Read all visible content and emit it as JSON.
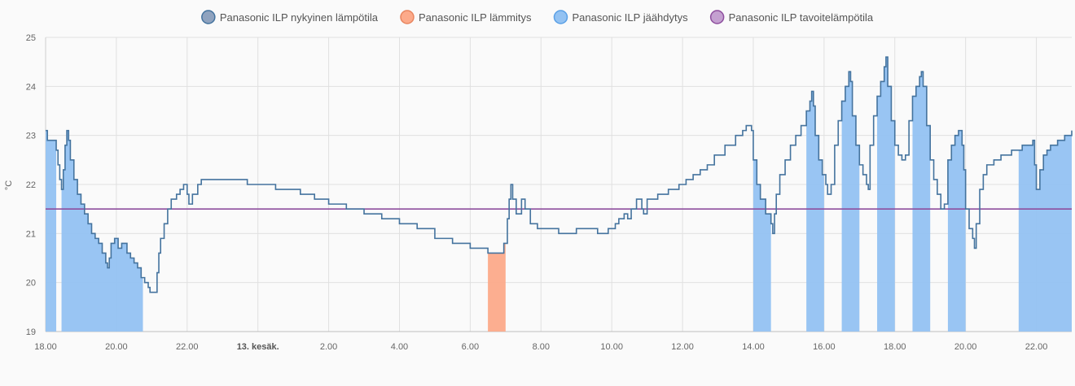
{
  "colors": {
    "current": "#44739e",
    "current_legend_fill": "#8fa3bf",
    "heating": "#fcaa8a",
    "heating_border": "#e8855f",
    "cooling": "#93c2f2",
    "cooling_border": "#5aa0e6",
    "target": "#8e4e9e",
    "target_legend_fill": "#c4a0d0",
    "grid": "#e0e0e0",
    "background": "#fafafa"
  },
  "chart_data": {
    "type": "line",
    "title": "",
    "xlabel": "",
    "ylabel": "°C",
    "x_unit": "hours since 18.00 on day 1",
    "xlim": [
      0,
      29
    ],
    "ylim": [
      19,
      25
    ],
    "y_ticks": [
      "19",
      "20",
      "21",
      "22",
      "23",
      "24",
      "25"
    ],
    "x_ticks": [
      {
        "x": 0,
        "label": "18.00",
        "bold": false
      },
      {
        "x": 2,
        "label": "20.00",
        "bold": false
      },
      {
        "x": 4,
        "label": "22.00",
        "bold": false
      },
      {
        "x": 6,
        "label": "13. kesäk.",
        "bold": true
      },
      {
        "x": 8,
        "label": "2.00",
        "bold": false
      },
      {
        "x": 10,
        "label": "4.00",
        "bold": false
      },
      {
        "x": 12,
        "label": "6.00",
        "bold": false
      },
      {
        "x": 14,
        "label": "8.00",
        "bold": false
      },
      {
        "x": 16,
        "label": "10.00",
        "bold": false
      },
      {
        "x": 18,
        "label": "12.00",
        "bold": false
      },
      {
        "x": 20,
        "label": "14.00",
        "bold": false
      },
      {
        "x": 22,
        "label": "16.00",
        "bold": false
      },
      {
        "x": 24,
        "label": "18.00",
        "bold": false
      },
      {
        "x": 26,
        "label": "20.00",
        "bold": false
      },
      {
        "x": 28,
        "label": "22.00",
        "bold": false
      }
    ],
    "legend": [
      {
        "key": "current",
        "label": "Panasonic ILP nykyinen lämpötila"
      },
      {
        "key": "heating",
        "label": "Panasonic ILP lämmitys"
      },
      {
        "key": "cooling",
        "label": "Panasonic ILP jäähdytys"
      },
      {
        "key": "target",
        "label": "Panasonic ILP tavoitelämpötila"
      }
    ],
    "series": [
      {
        "name": "Panasonic ILP nykyinen lämpötila",
        "key": "current",
        "kind": "step-line",
        "points": [
          [
            0.0,
            23.1
          ],
          [
            0.05,
            22.9
          ],
          [
            0.2,
            22.9
          ],
          [
            0.3,
            22.7
          ],
          [
            0.35,
            22.4
          ],
          [
            0.4,
            22.1
          ],
          [
            0.45,
            21.9
          ],
          [
            0.5,
            22.3
          ],
          [
            0.55,
            22.8
          ],
          [
            0.6,
            23.1
          ],
          [
            0.65,
            22.9
          ],
          [
            0.7,
            22.5
          ],
          [
            0.8,
            22.1
          ],
          [
            0.9,
            21.8
          ],
          [
            1.0,
            21.6
          ],
          [
            1.1,
            21.4
          ],
          [
            1.2,
            21.2
          ],
          [
            1.3,
            21.0
          ],
          [
            1.4,
            20.9
          ],
          [
            1.5,
            20.8
          ],
          [
            1.6,
            20.6
          ],
          [
            1.7,
            20.4
          ],
          [
            1.75,
            20.3
          ],
          [
            1.8,
            20.5
          ],
          [
            1.85,
            20.8
          ],
          [
            1.95,
            20.9
          ],
          [
            2.05,
            20.7
          ],
          [
            2.15,
            20.8
          ],
          [
            2.3,
            20.6
          ],
          [
            2.4,
            20.5
          ],
          [
            2.5,
            20.4
          ],
          [
            2.6,
            20.3
          ],
          [
            2.7,
            20.1
          ],
          [
            2.8,
            20.0
          ],
          [
            2.9,
            19.9
          ],
          [
            2.95,
            19.8
          ],
          [
            3.1,
            19.8
          ],
          [
            3.15,
            20.2
          ],
          [
            3.2,
            20.6
          ],
          [
            3.25,
            20.9
          ],
          [
            3.35,
            21.2
          ],
          [
            3.45,
            21.5
          ],
          [
            3.55,
            21.7
          ],
          [
            3.7,
            21.8
          ],
          [
            3.8,
            21.9
          ],
          [
            3.9,
            22.0
          ],
          [
            4.0,
            21.8
          ],
          [
            4.05,
            21.6
          ],
          [
            4.15,
            21.8
          ],
          [
            4.3,
            22.0
          ],
          [
            4.4,
            22.1
          ],
          [
            5.7,
            22.0
          ],
          [
            6.5,
            21.9
          ],
          [
            7.2,
            21.8
          ],
          [
            7.6,
            21.7
          ],
          [
            8.0,
            21.6
          ],
          [
            8.5,
            21.5
          ],
          [
            9.0,
            21.4
          ],
          [
            9.5,
            21.3
          ],
          [
            10.0,
            21.2
          ],
          [
            10.5,
            21.1
          ],
          [
            11.0,
            20.9
          ],
          [
            11.5,
            20.8
          ],
          [
            12.0,
            20.7
          ],
          [
            12.5,
            20.6
          ],
          [
            12.9,
            20.6
          ],
          [
            12.95,
            20.8
          ],
          [
            13.05,
            21.3
          ],
          [
            13.1,
            21.7
          ],
          [
            13.15,
            22.0
          ],
          [
            13.2,
            21.7
          ],
          [
            13.3,
            21.4
          ],
          [
            13.45,
            21.7
          ],
          [
            13.55,
            21.5
          ],
          [
            13.7,
            21.2
          ],
          [
            13.9,
            21.1
          ],
          [
            14.5,
            21.0
          ],
          [
            15.0,
            21.1
          ],
          [
            15.6,
            21.0
          ],
          [
            15.9,
            21.1
          ],
          [
            16.1,
            21.2
          ],
          [
            16.2,
            21.3
          ],
          [
            16.35,
            21.4
          ],
          [
            16.45,
            21.3
          ],
          [
            16.55,
            21.5
          ],
          [
            16.7,
            21.7
          ],
          [
            16.85,
            21.5
          ],
          [
            16.9,
            21.4
          ],
          [
            17.0,
            21.7
          ],
          [
            17.3,
            21.8
          ],
          [
            17.6,
            21.9
          ],
          [
            17.9,
            22.0
          ],
          [
            18.1,
            22.1
          ],
          [
            18.3,
            22.2
          ],
          [
            18.5,
            22.3
          ],
          [
            18.7,
            22.4
          ],
          [
            18.9,
            22.6
          ],
          [
            19.2,
            22.8
          ],
          [
            19.5,
            23.0
          ],
          [
            19.7,
            23.1
          ],
          [
            19.8,
            23.2
          ],
          [
            19.95,
            23.1
          ],
          [
            20.0,
            22.5
          ],
          [
            20.1,
            22.0
          ],
          [
            20.2,
            21.7
          ],
          [
            20.35,
            21.4
          ],
          [
            20.5,
            21.2
          ],
          [
            20.55,
            21.0
          ],
          [
            20.6,
            21.4
          ],
          [
            20.65,
            21.8
          ],
          [
            20.75,
            22.2
          ],
          [
            20.9,
            22.5
          ],
          [
            21.05,
            22.8
          ],
          [
            21.2,
            23.0
          ],
          [
            21.35,
            23.2
          ],
          [
            21.5,
            23.5
          ],
          [
            21.6,
            23.7
          ],
          [
            21.65,
            23.9
          ],
          [
            21.7,
            23.6
          ],
          [
            21.75,
            23.0
          ],
          [
            21.85,
            22.5
          ],
          [
            21.95,
            22.2
          ],
          [
            22.05,
            22.0
          ],
          [
            22.1,
            21.8
          ],
          [
            22.2,
            22.0
          ],
          [
            22.3,
            22.8
          ],
          [
            22.4,
            23.3
          ],
          [
            22.5,
            23.7
          ],
          [
            22.6,
            24.0
          ],
          [
            22.7,
            24.3
          ],
          [
            22.75,
            24.1
          ],
          [
            22.8,
            23.4
          ],
          [
            22.9,
            22.8
          ],
          [
            23.0,
            22.4
          ],
          [
            23.1,
            22.2
          ],
          [
            23.2,
            22.0
          ],
          [
            23.25,
            21.9
          ],
          [
            23.3,
            22.8
          ],
          [
            23.4,
            23.4
          ],
          [
            23.5,
            23.8
          ],
          [
            23.6,
            24.1
          ],
          [
            23.7,
            24.4
          ],
          [
            23.75,
            24.6
          ],
          [
            23.8,
            24.0
          ],
          [
            23.9,
            23.3
          ],
          [
            24.0,
            22.8
          ],
          [
            24.1,
            22.6
          ],
          [
            24.2,
            22.5
          ],
          [
            24.3,
            22.6
          ],
          [
            24.4,
            23.3
          ],
          [
            24.5,
            23.8
          ],
          [
            24.6,
            24.0
          ],
          [
            24.7,
            24.2
          ],
          [
            24.75,
            24.3
          ],
          [
            24.8,
            24.0
          ],
          [
            24.9,
            23.2
          ],
          [
            25.0,
            22.5
          ],
          [
            25.1,
            22.1
          ],
          [
            25.2,
            21.8
          ],
          [
            25.3,
            21.5
          ],
          [
            25.4,
            21.6
          ],
          [
            25.5,
            22.5
          ],
          [
            25.6,
            22.8
          ],
          [
            25.7,
            23.0
          ],
          [
            25.8,
            23.1
          ],
          [
            25.9,
            22.8
          ],
          [
            25.95,
            22.3
          ],
          [
            26.0,
            21.5
          ],
          [
            26.1,
            21.1
          ],
          [
            26.2,
            20.9
          ],
          [
            26.25,
            20.7
          ],
          [
            26.3,
            21.2
          ],
          [
            26.4,
            21.9
          ],
          [
            26.5,
            22.2
          ],
          [
            26.6,
            22.4
          ],
          [
            26.8,
            22.5
          ],
          [
            27.0,
            22.6
          ],
          [
            27.3,
            22.7
          ],
          [
            27.6,
            22.8
          ],
          [
            27.9,
            22.9
          ],
          [
            27.95,
            22.4
          ],
          [
            28.0,
            21.9
          ],
          [
            28.1,
            22.3
          ],
          [
            28.2,
            22.6
          ],
          [
            28.3,
            22.7
          ],
          [
            28.4,
            22.8
          ],
          [
            28.6,
            22.9
          ],
          [
            28.8,
            23.0
          ],
          [
            29.0,
            23.1
          ]
        ]
      },
      {
        "name": "Panasonic ILP lämmitys",
        "key": "heating",
        "kind": "fill-under-current",
        "intervals": [
          [
            12.5,
            13.0
          ]
        ]
      },
      {
        "name": "Panasonic ILP jäähdytys",
        "key": "cooling",
        "kind": "fill-under-current",
        "intervals": [
          [
            0.0,
            0.3
          ],
          [
            0.45,
            2.75
          ],
          [
            20.0,
            20.5
          ],
          [
            21.5,
            22.0
          ],
          [
            22.5,
            23.0
          ],
          [
            23.5,
            24.0
          ],
          [
            24.5,
            25.0
          ],
          [
            25.5,
            26.0
          ],
          [
            27.5,
            29.0
          ]
        ]
      },
      {
        "name": "Panasonic ILP tavoitelämpötila",
        "key": "target",
        "kind": "line",
        "points": [
          [
            0.0,
            21.5
          ],
          [
            29.0,
            21.5
          ]
        ]
      }
    ]
  }
}
